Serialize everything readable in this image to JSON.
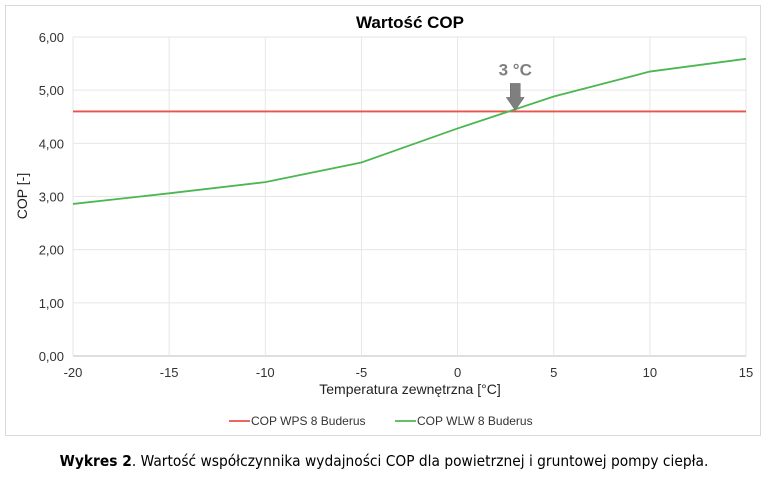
{
  "chart_data": {
    "type": "line",
    "title": "Wartość COP",
    "xlabel": "Temperatura zewnętrzna [°C]",
    "ylabel": "COP [-]",
    "xlim": [
      -20,
      15
    ],
    "ylim": [
      0,
      6
    ],
    "x_ticks": [
      "-20",
      "-15",
      "-10",
      "-5",
      "0",
      "5",
      "10",
      "15"
    ],
    "y_ticks": [
      "0,00",
      "1,00",
      "2,00",
      "3,00",
      "4,00",
      "5,00",
      "6,00"
    ],
    "grid": true,
    "legend": "bottom",
    "x": [
      -20,
      -15,
      -10,
      -5,
      0,
      5,
      10,
      15
    ],
    "series": [
      {
        "name": "COP WPS 8 Buderus",
        "color": "#e8534a",
        "values": [
          4.6,
          4.6,
          4.6,
          4.6,
          4.6,
          4.6,
          4.6,
          4.6
        ]
      },
      {
        "name": "COP WLW 8 Buderus",
        "color": "#4cb752",
        "values": [
          2.86,
          3.06,
          3.27,
          3.64,
          4.28,
          4.88,
          5.35,
          5.59
        ]
      }
    ],
    "annotation": {
      "text": "3 °C",
      "x": 3,
      "y": 4.6,
      "color": "#808080"
    }
  },
  "caption": {
    "bold": "Wykres 2",
    "text": ". Wartość współczynnika wydajności COP dla powietrznej i gruntowej pompy ciepła."
  }
}
